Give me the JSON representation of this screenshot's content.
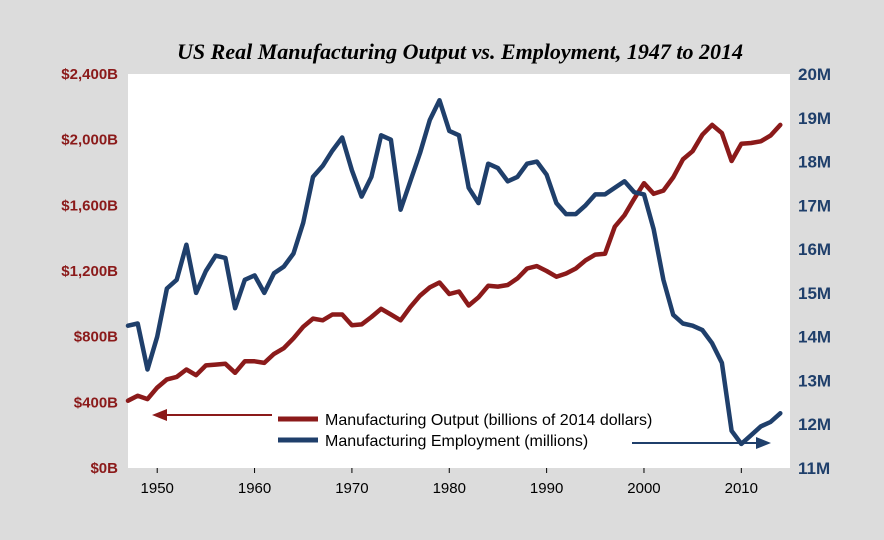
{
  "colors": {
    "output": "#8b1a1a",
    "employment": "#1f3f6b",
    "plot_bg": "#ffffff",
    "page_bg": "#dcdcdc"
  },
  "chart_data": {
    "type": "line",
    "title": "US Real Manufacturing Output vs. Employment, 1947 to 2014",
    "xlim": [
      1947,
      2015
    ],
    "x_ticks": [
      "1950",
      "1960",
      "1970",
      "1980",
      "1990",
      "2000",
      "2010"
    ],
    "y_left": {
      "ylim": [
        0,
        2400
      ],
      "tick_labels": [
        "$0B",
        "$400B",
        "$800B",
        "$1,200B",
        "$1,600B",
        "$2,000B",
        "$2,400B"
      ],
      "axis_side_indicator": "left arrow under legend"
    },
    "y_right": {
      "ylim": [
        11,
        20
      ],
      "tick_labels": [
        "11M",
        "12M",
        "13M",
        "14M",
        "15M",
        "16M",
        "17M",
        "18M",
        "19M",
        "20M"
      ],
      "axis_side_indicator": "right arrow under legend"
    },
    "grid": false,
    "legend": {
      "placement": "bottom-center"
    },
    "series": [
      {
        "name": "Manufacturing Output (billions of 2014 dollars)",
        "axis": "left",
        "color": "#8b1a1a",
        "x": [
          1947,
          1948,
          1949,
          1950,
          1951,
          1952,
          1953,
          1954,
          1955,
          1956,
          1957,
          1958,
          1959,
          1960,
          1961,
          1962,
          1963,
          1964,
          1965,
          1966,
          1967,
          1968,
          1969,
          1970,
          1971,
          1972,
          1973,
          1974,
          1975,
          1976,
          1977,
          1978,
          1979,
          1980,
          1981,
          1982,
          1983,
          1984,
          1985,
          1986,
          1987,
          1988,
          1989,
          1990,
          1991,
          1992,
          1993,
          1994,
          1995,
          1996,
          1997,
          1998,
          1999,
          2000,
          2001,
          2002,
          2003,
          2004,
          2005,
          2006,
          2007,
          2008,
          2009,
          2010,
          2011,
          2012,
          2013,
          2014
        ],
        "values": [
          410,
          440,
          420,
          490,
          540,
          555,
          600,
          565,
          625,
          630,
          635,
          580,
          650,
          650,
          640,
          695,
          730,
          790,
          860,
          910,
          900,
          935,
          935,
          870,
          875,
          920,
          970,
          935,
          900,
          980,
          1050,
          1100,
          1130,
          1060,
          1075,
          990,
          1040,
          1110,
          1105,
          1115,
          1155,
          1215,
          1230,
          1200,
          1165,
          1185,
          1215,
          1265,
          1300,
          1305,
          1470,
          1540,
          1640,
          1735,
          1670,
          1690,
          1770,
          1880,
          1930,
          2030,
          2090,
          2040,
          1870,
          1975,
          1980,
          1990,
          2025,
          2090
        ]
      },
      {
        "name": "Manufacturing Employment (millions)",
        "axis": "right",
        "color": "#1f3f6b",
        "x": [
          1947,
          1948,
          1949,
          1950,
          1951,
          1952,
          1953,
          1954,
          1955,
          1956,
          1957,
          1958,
          1959,
          1960,
          1961,
          1962,
          1963,
          1964,
          1965,
          1966,
          1967,
          1968,
          1969,
          1970,
          1971,
          1972,
          1973,
          1974,
          1975,
          1976,
          1977,
          1978,
          1979,
          1980,
          1981,
          1982,
          1983,
          1984,
          1985,
          1986,
          1987,
          1988,
          1989,
          1990,
          1991,
          1992,
          1993,
          1994,
          1995,
          1996,
          1997,
          1998,
          1999,
          2000,
          2001,
          2002,
          2003,
          2004,
          2005,
          2006,
          2007,
          2008,
          2009,
          2010,
          2011,
          2012,
          2013,
          2014
        ],
        "values": [
          14.25,
          14.3,
          13.25,
          14.0,
          15.1,
          15.3,
          16.1,
          15.0,
          15.5,
          15.85,
          15.8,
          14.65,
          15.3,
          15.4,
          15.0,
          15.45,
          15.6,
          15.9,
          16.6,
          17.65,
          17.9,
          18.25,
          18.55,
          17.8,
          17.2,
          17.65,
          18.6,
          18.5,
          16.9,
          17.55,
          18.2,
          18.95,
          19.4,
          18.7,
          18.6,
          17.4,
          17.05,
          17.95,
          17.85,
          17.55,
          17.65,
          17.95,
          18.0,
          17.7,
          17.05,
          16.8,
          16.8,
          17.0,
          17.25,
          17.25,
          17.4,
          17.55,
          17.3,
          17.25,
          16.45,
          15.3,
          14.5,
          14.3,
          14.25,
          14.15,
          13.85,
          13.4,
          11.85,
          11.55,
          11.75,
          11.95,
          12.05,
          12.25
        ]
      }
    ]
  }
}
